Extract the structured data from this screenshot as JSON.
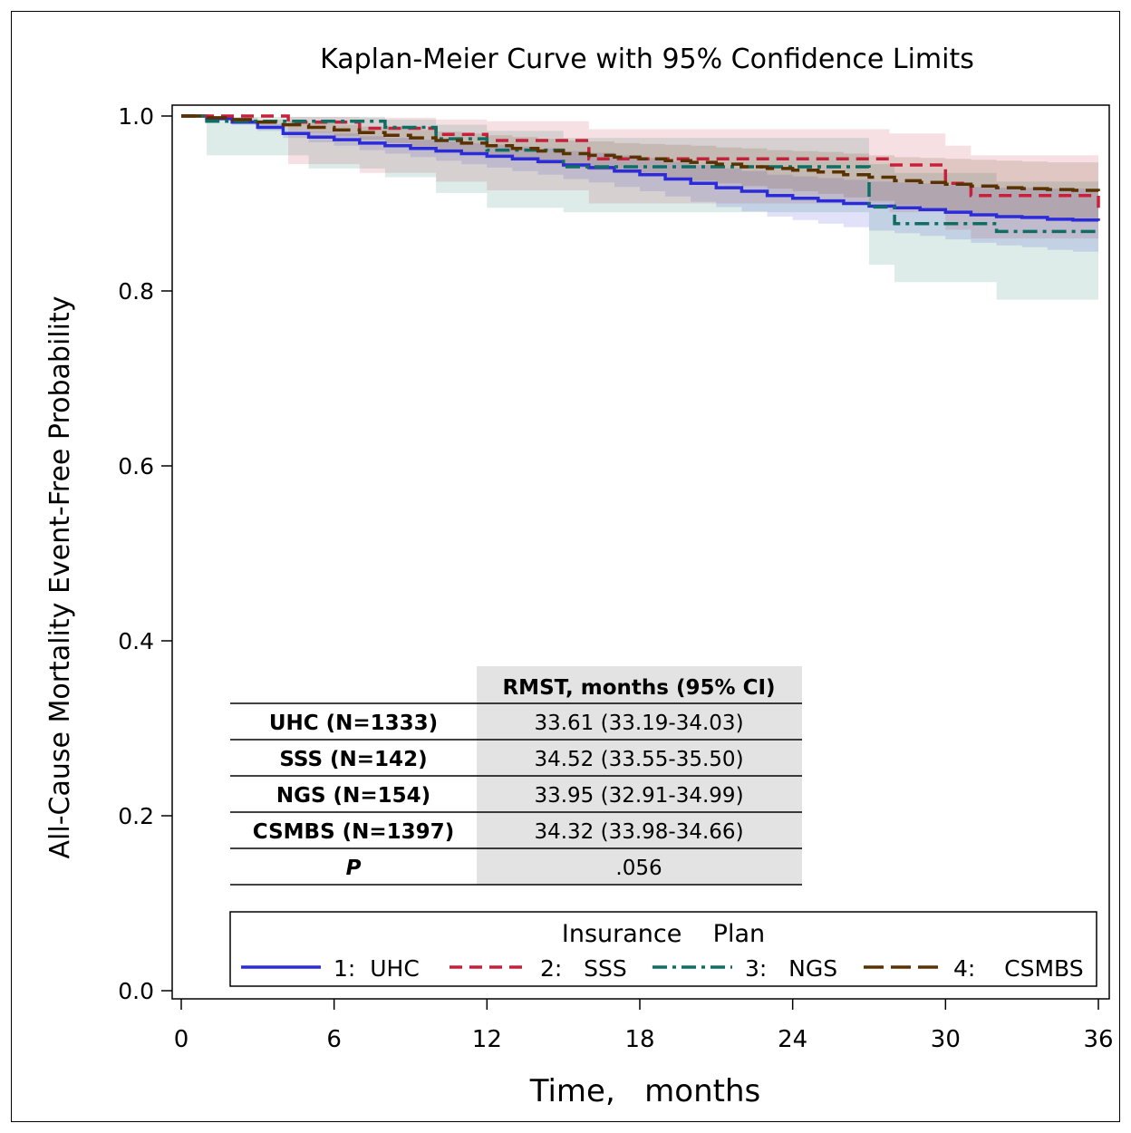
{
  "chart_data": {
    "type": "line",
    "title": "Kaplan-Meier Curve with 95% Confidence Limits",
    "xlabel": "Time,   months",
    "ylabel": "All-Cause Mortality Event-Free Probability",
    "xlim": [
      0,
      36
    ],
    "ylim": [
      0,
      1.0
    ],
    "x_ticks": [
      0,
      6,
      12,
      18,
      24,
      30,
      36
    ],
    "x_tick_labels": [
      "0",
      "6",
      "12",
      "18",
      "24",
      "30",
      "36"
    ],
    "y_ticks": [
      0,
      0.2,
      0.4,
      0.6,
      0.8,
      1.0
    ],
    "y_tick_labels": [
      "0.0",
      "0.2",
      "0.4",
      "0.6",
      "0.8",
      "1.0"
    ],
    "legend": {
      "title": "Insurance    Plan",
      "position": "bottom",
      "entries": [
        "1:  UHC",
        "2:   SSS",
        "3:   NGS",
        "4:    CSMBS"
      ]
    },
    "series": [
      {
        "name": "1:  UHC",
        "color": "#2b2bd9",
        "dash": "solid",
        "x": [
          0,
          1,
          2,
          3,
          4,
          5,
          6,
          7,
          8,
          9,
          10,
          11,
          12,
          13,
          14,
          15,
          16,
          17,
          18,
          19,
          20,
          21,
          22,
          23,
          24,
          25,
          26,
          27,
          28,
          29,
          30,
          31,
          32,
          33,
          34,
          35,
          36
        ],
        "y": [
          1.0,
          0.997,
          0.993,
          0.987,
          0.98,
          0.976,
          0.973,
          0.969,
          0.966,
          0.963,
          0.96,
          0.957,
          0.954,
          0.951,
          0.948,
          0.944,
          0.941,
          0.937,
          0.933,
          0.928,
          0.923,
          0.918,
          0.914,
          0.909,
          0.906,
          0.903,
          0.9,
          0.897,
          0.895,
          0.893,
          0.89,
          0.887,
          0.885,
          0.884,
          0.882,
          0.881,
          0.88
        ],
        "lower": [
          1.0,
          0.995,
          0.99,
          0.983,
          0.975,
          0.97,
          0.966,
          0.961,
          0.957,
          0.953,
          0.949,
          0.945,
          0.941,
          0.937,
          0.933,
          0.928,
          0.924,
          0.919,
          0.914,
          0.908,
          0.902,
          0.896,
          0.891,
          0.885,
          0.881,
          0.877,
          0.873,
          0.869,
          0.866,
          0.863,
          0.859,
          0.855,
          0.852,
          0.85,
          0.847,
          0.845,
          0.843
        ],
        "upper": [
          1.0,
          0.999,
          0.996,
          0.991,
          0.985,
          0.982,
          0.98,
          0.977,
          0.975,
          0.973,
          0.971,
          0.969,
          0.967,
          0.965,
          0.963,
          0.96,
          0.958,
          0.955,
          0.952,
          0.948,
          0.944,
          0.94,
          0.937,
          0.933,
          0.931,
          0.929,
          0.927,
          0.925,
          0.924,
          0.923,
          0.921,
          0.919,
          0.918,
          0.918,
          0.917,
          0.917,
          0.917
        ]
      },
      {
        "name": "2:   SSS",
        "color": "#c8203a",
        "dash": "14 8",
        "x": [
          0,
          4.2,
          7,
          10,
          12,
          16,
          22,
          27.8,
          30,
          31,
          36
        ],
        "y": [
          1.0,
          0.993,
          0.986,
          0.979,
          0.972,
          0.951,
          0.951,
          0.944,
          0.923,
          0.909,
          0.895
        ],
        "lower": [
          1.0,
          0.945,
          0.935,
          0.925,
          0.915,
          0.9,
          0.9,
          0.89,
          0.87,
          0.86,
          0.845
        ],
        "upper": [
          1.0,
          0.999,
          0.998,
          0.996,
          0.994,
          0.985,
          0.985,
          0.98,
          0.966,
          0.955,
          0.945
        ]
      },
      {
        "name": "3:   NGS",
        "color": "#0f6e64",
        "dash": "16 6 4 6",
        "x": [
          0,
          1,
          5,
          8,
          10,
          12,
          15,
          19,
          27,
          28,
          32,
          36
        ],
        "y": [
          1.0,
          0.994,
          0.994,
          0.987,
          0.974,
          0.961,
          0.942,
          0.942,
          0.896,
          0.877,
          0.868,
          0.868
        ],
        "lower": [
          1.0,
          0.955,
          0.94,
          0.93,
          0.912,
          0.895,
          0.89,
          0.89,
          0.83,
          0.81,
          0.79,
          0.79
        ],
        "upper": [
          1.0,
          0.999,
          0.999,
          0.996,
          0.99,
          0.983,
          0.975,
          0.975,
          0.945,
          0.935,
          0.925,
          0.925
        ]
      },
      {
        "name": "4:    CSMBS",
        "color": "#5a3200",
        "dash": "22 8",
        "x": [
          0,
          1,
          2,
          3,
          4,
          5,
          6,
          7,
          8,
          9,
          10,
          11,
          12,
          13,
          14,
          15,
          16,
          17,
          18,
          19,
          20,
          21,
          22,
          23,
          24,
          25,
          26,
          27,
          28,
          29,
          30,
          31,
          32,
          33,
          34,
          35,
          36
        ],
        "y": [
          1.0,
          0.998,
          0.996,
          0.993,
          0.99,
          0.987,
          0.984,
          0.981,
          0.978,
          0.975,
          0.972,
          0.969,
          0.966,
          0.963,
          0.96,
          0.957,
          0.955,
          0.953,
          0.951,
          0.949,
          0.947,
          0.945,
          0.942,
          0.94,
          0.938,
          0.936,
          0.933,
          0.93,
          0.926,
          0.924,
          0.922,
          0.92,
          0.918,
          0.917,
          0.916,
          0.915,
          0.914
        ],
        "lower": [
          1.0,
          0.996,
          0.993,
          0.989,
          0.985,
          0.981,
          0.977,
          0.973,
          0.969,
          0.965,
          0.961,
          0.957,
          0.953,
          0.949,
          0.945,
          0.941,
          0.938,
          0.935,
          0.932,
          0.929,
          0.926,
          0.923,
          0.92,
          0.917,
          0.914,
          0.911,
          0.907,
          0.903,
          0.898,
          0.895,
          0.892,
          0.889,
          0.886,
          0.884,
          0.883,
          0.881,
          0.88
        ],
        "upper": [
          1.0,
          0.999,
          0.998,
          0.996,
          0.994,
          0.992,
          0.99,
          0.988,
          0.986,
          0.984,
          0.982,
          0.98,
          0.978,
          0.976,
          0.974,
          0.972,
          0.971,
          0.969,
          0.968,
          0.967,
          0.966,
          0.964,
          0.963,
          0.961,
          0.96,
          0.959,
          0.957,
          0.955,
          0.953,
          0.952,
          0.951,
          0.95,
          0.949,
          0.948,
          0.947,
          0.947,
          0.946
        ]
      }
    ]
  },
  "inset_table": {
    "header": "RMST, months (95% CI)",
    "rows": [
      {
        "label": "UHC (N=1333)",
        "value": "33.61 (33.19-34.03)"
      },
      {
        "label": "SSS (N=142)",
        "value": "34.52 (33.55-35.50)"
      },
      {
        "label": "NGS (N=154)",
        "value": "33.95 (32.91-34.99)"
      },
      {
        "label": "CSMBS (N=1397)",
        "value": "34.32 (33.98-34.66)"
      },
      {
        "label": "P",
        "value": ".056"
      }
    ]
  }
}
